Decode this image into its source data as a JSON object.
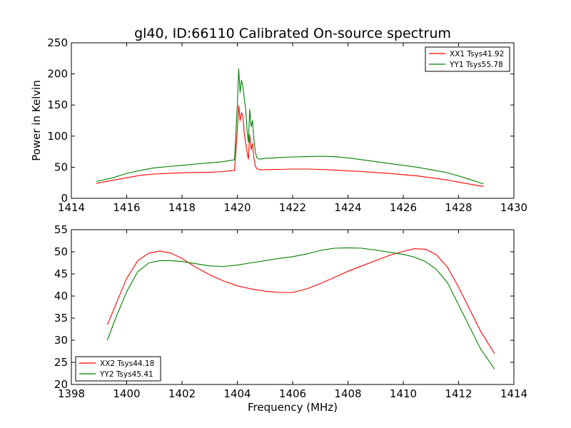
{
  "chart_data": [
    {
      "type": "line",
      "title": "gl40, ID:66110 Calibrated On-source spectrum",
      "xlabel": "",
      "ylabel": "Power in Kelvin",
      "xlim": [
        1414,
        1430
      ],
      "ylim": [
        0,
        250
      ],
      "xticks": [
        "1414",
        "1416",
        "1418",
        "1420",
        "1422",
        "1424",
        "1426",
        "1428",
        "1430"
      ],
      "yticks": [
        "0",
        "50",
        "100",
        "150",
        "200",
        "250"
      ],
      "legend_position": "top-right",
      "series": [
        {
          "name": "XX1 Tsys41.92",
          "color": "#ff0000",
          "x": [
            1414.9,
            1415.5,
            1416.0,
            1416.5,
            1417.0,
            1417.5,
            1418.0,
            1418.5,
            1419.0,
            1419.5,
            1419.9,
            1420.0,
            1420.05,
            1420.1,
            1420.15,
            1420.2,
            1420.25,
            1420.3,
            1420.35,
            1420.4,
            1420.45,
            1420.5,
            1420.55,
            1420.6,
            1420.65,
            1420.7,
            1420.75,
            1420.8,
            1421.0,
            1421.5,
            1422.0,
            1422.5,
            1423.0,
            1423.5,
            1424.0,
            1424.5,
            1425.0,
            1425.5,
            1426.0,
            1426.5,
            1427.0,
            1427.5,
            1428.0,
            1428.5,
            1428.9
          ],
          "y": [
            24,
            29,
            33,
            37,
            39,
            40,
            41,
            41.5,
            42,
            43,
            45,
            110,
            149,
            125,
            138,
            132,
            105,
            90,
            75,
            63,
            102,
            78,
            88,
            65,
            52,
            48,
            47,
            46,
            46,
            46.5,
            47,
            47,
            46.5,
            45.5,
            44,
            43,
            41.5,
            40,
            38,
            36,
            33,
            30,
            26,
            22,
            19
          ]
        },
        {
          "name": "YY1 Tsys55.78",
          "color": "#008000",
          "x": [
            1414.9,
            1415.5,
            1416.0,
            1416.5,
            1417.0,
            1417.5,
            1418.0,
            1418.5,
            1419.0,
            1419.5,
            1419.9,
            1420.0,
            1420.05,
            1420.1,
            1420.15,
            1420.2,
            1420.25,
            1420.3,
            1420.35,
            1420.4,
            1420.45,
            1420.5,
            1420.55,
            1420.6,
            1420.65,
            1420.7,
            1420.75,
            1420.8,
            1421.0,
            1421.5,
            1422.0,
            1422.5,
            1423.0,
            1423.5,
            1424.0,
            1424.5,
            1425.0,
            1425.5,
            1426.0,
            1426.5,
            1427.0,
            1427.5,
            1428.0,
            1428.5,
            1428.9
          ],
          "y": [
            27,
            33,
            40,
            45,
            49,
            51,
            53,
            55,
            57,
            59,
            62,
            150,
            208,
            170,
            190,
            180,
            160,
            145,
            110,
            90,
            143,
            115,
            125,
            95,
            75,
            66,
            64,
            63,
            64,
            65.5,
            66.5,
            67,
            67.5,
            67,
            65,
            62,
            59,
            56,
            53,
            50,
            46,
            42,
            36,
            29,
            23
          ]
        }
      ]
    },
    {
      "type": "line",
      "title": "",
      "xlabel": "Frequency (MHz)",
      "ylabel": "",
      "xlim": [
        1398,
        1414
      ],
      "ylim": [
        20,
        55
      ],
      "xticks": [
        "1398",
        "1400",
        "1402",
        "1404",
        "1406",
        "1408",
        "1410",
        "1412",
        "1414"
      ],
      "yticks": [
        "20",
        "25",
        "30",
        "35",
        "40",
        "45",
        "50",
        "55"
      ],
      "legend_position": "bottom-left",
      "series": [
        {
          "name": "XX2 Tsys44.18",
          "color": "#ff0000",
          "x": [
            1399.3,
            1399.6,
            1400.0,
            1400.4,
            1400.8,
            1401.2,
            1401.6,
            1402.0,
            1402.5,
            1403.0,
            1403.5,
            1404.0,
            1404.5,
            1405.0,
            1405.5,
            1406.0,
            1406.5,
            1407.0,
            1407.5,
            1408.0,
            1408.5,
            1409.0,
            1409.5,
            1410.0,
            1410.4,
            1410.8,
            1411.2,
            1411.6,
            1412.0,
            1412.4,
            1412.8,
            1413.3
          ],
          "y": [
            33.5,
            38,
            44,
            48,
            49.7,
            50.2,
            49.7,
            48.5,
            46.5,
            44.8,
            43.4,
            42.3,
            41.6,
            41.1,
            40.8,
            40.8,
            41.6,
            42.8,
            44.2,
            45.6,
            46.8,
            48.0,
            49.2,
            50.1,
            50.7,
            50.6,
            49.3,
            46.5,
            42,
            37,
            32,
            27
          ]
        },
        {
          "name": "YY2 Tsys45.41",
          "color": "#008000",
          "x": [
            1399.3,
            1399.6,
            1400.0,
            1400.4,
            1400.8,
            1401.2,
            1401.6,
            1402.0,
            1402.5,
            1403.0,
            1403.5,
            1404.0,
            1404.5,
            1405.0,
            1405.5,
            1406.0,
            1406.5,
            1407.0,
            1407.5,
            1408.0,
            1408.5,
            1409.0,
            1409.5,
            1410.0,
            1410.4,
            1410.8,
            1411.2,
            1411.6,
            1412.0,
            1412.4,
            1412.8,
            1413.3
          ],
          "y": [
            30,
            35,
            41,
            45.5,
            47.5,
            48,
            48,
            47.8,
            47.3,
            46.8,
            46.7,
            47,
            47.5,
            48,
            48.5,
            48.9,
            49.5,
            50.3,
            50.8,
            50.9,
            50.8,
            50.4,
            49.9,
            49.4,
            48.8,
            47.8,
            46.0,
            43.0,
            38,
            33,
            28,
            23.5
          ]
        }
      ]
    }
  ]
}
